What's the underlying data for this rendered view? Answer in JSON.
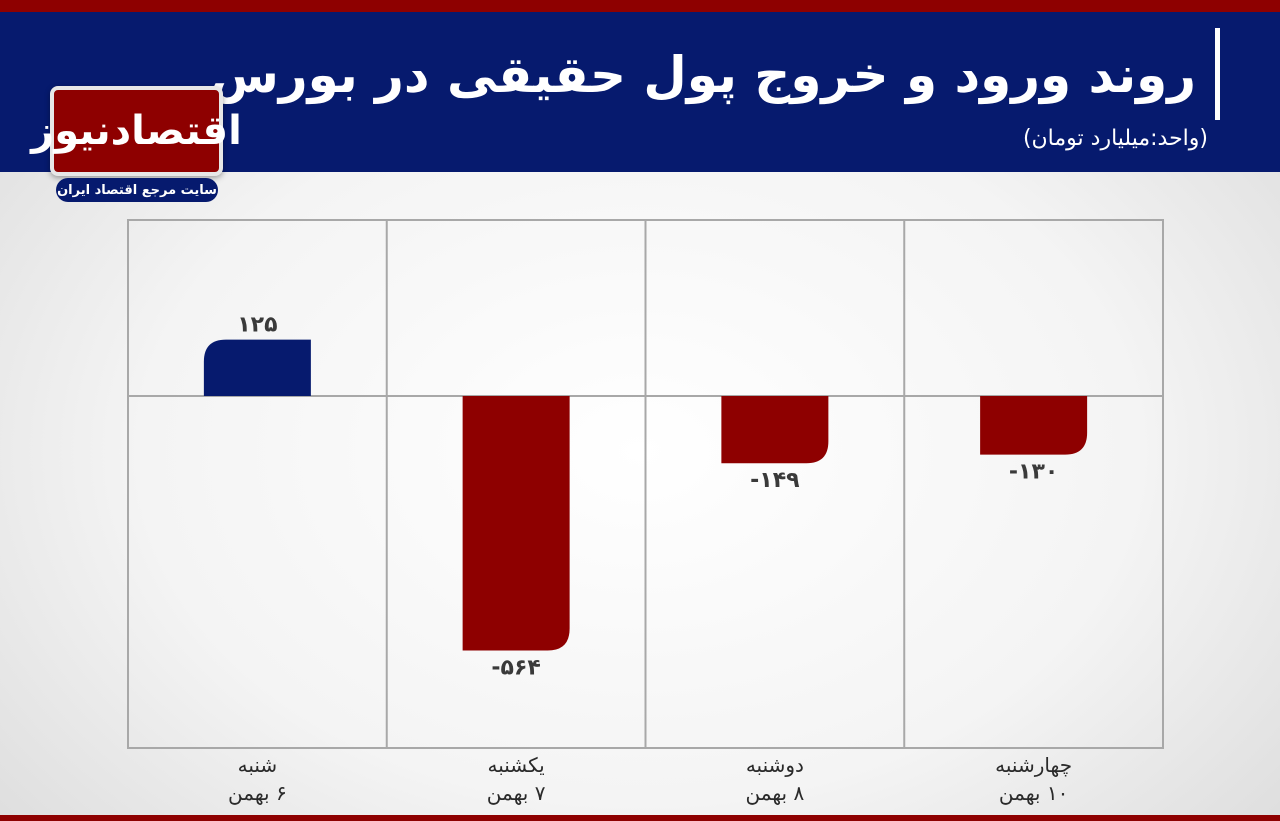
{
  "header": {
    "title": "روند ورود و خروج پول حقیقی در بورس",
    "unit": "(واحد:میلیارد تومان)"
  },
  "logo": {
    "name": "اقتصادنیوز",
    "tagline": "سایت مرجع اقتصاد ایران"
  },
  "colors": {
    "positive": "#061a6e",
    "negative": "#8e0000",
    "header": "#061a6e",
    "accent": "#8e0000"
  },
  "chart_data": {
    "type": "bar",
    "categories": [
      {
        "day": "شنبه",
        "date": "۶ بهمن"
      },
      {
        "day": "یکشنبه",
        "date": "۷ بهمن"
      },
      {
        "day": "دوشنبه",
        "date": "۸ بهمن"
      },
      {
        "day": "چهارشنبه",
        "date": "۱۰ بهمن"
      }
    ],
    "values": [
      125,
      -564,
      -149,
      -130
    ],
    "value_labels": [
      "۱۲۵",
      "-۵۶۴",
      "-۱۴۹",
      "-۱۳۰"
    ],
    "ylim": [
      -780,
      390
    ],
    "grid": true,
    "legend": "none"
  }
}
